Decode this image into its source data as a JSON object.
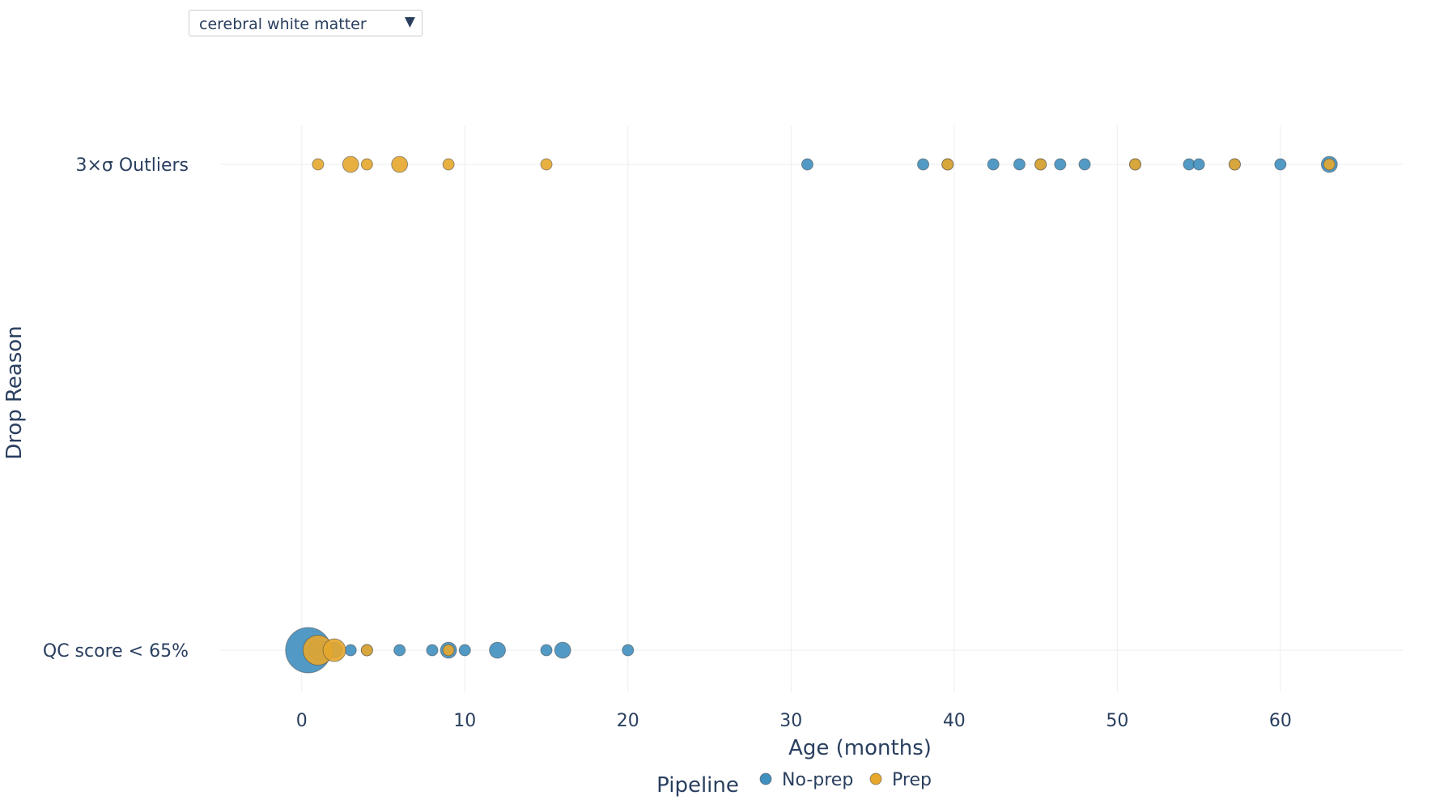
{
  "dropdown": {
    "selected": "cerebral white matter"
  },
  "colors": {
    "no_prep": "#3f8fbf",
    "prep": "#e6a72c",
    "grid": "#ebedf0",
    "text": "#2a3f5f"
  },
  "chart_data": {
    "type": "scatter",
    "title": "",
    "xlabel": "Age (months)",
    "ylabel": "Drop Reason",
    "xlim": [
      -5,
      67.5
    ],
    "xticks": [
      0,
      10,
      20,
      30,
      40,
      50,
      60
    ],
    "categories": [
      "3×σ Outliers",
      "QC score < 65%"
    ],
    "grid": true,
    "legend": {
      "title": "Pipeline",
      "placement": "bottom-center"
    },
    "series": [
      {
        "name": "No-prep",
        "color": "#3f8fbf",
        "points": [
          {
            "x": 31,
            "y": "3×σ Outliers",
            "count": 1
          },
          {
            "x": 38.1,
            "y": "3×σ Outliers",
            "count": 1
          },
          {
            "x": 39.6,
            "y": "3×σ Outliers",
            "count": 1
          },
          {
            "x": 42.4,
            "y": "3×σ Outliers",
            "count": 1
          },
          {
            "x": 44,
            "y": "3×σ Outliers",
            "count": 1
          },
          {
            "x": 45.3,
            "y": "3×σ Outliers",
            "count": 1
          },
          {
            "x": 46.5,
            "y": "3×σ Outliers",
            "count": 1
          },
          {
            "x": 48,
            "y": "3×σ Outliers",
            "count": 1
          },
          {
            "x": 51.1,
            "y": "3×σ Outliers",
            "count": 1
          },
          {
            "x": 54.4,
            "y": "3×σ Outliers",
            "count": 1
          },
          {
            "x": 55,
            "y": "3×σ Outliers",
            "count": 1
          },
          {
            "x": 57.2,
            "y": "3×σ Outliers",
            "count": 1
          },
          {
            "x": 60,
            "y": "3×σ Outliers",
            "count": 1
          },
          {
            "x": 63,
            "y": "3×σ Outliers",
            "count": 2
          },
          {
            "x": 0.4,
            "y": "QC score < 65%",
            "count": 16
          },
          {
            "x": 1,
            "y": "QC score < 65%",
            "count": 3
          },
          {
            "x": 2,
            "y": "QC score < 65%",
            "count": 2
          },
          {
            "x": 3,
            "y": "QC score < 65%",
            "count": 1
          },
          {
            "x": 4,
            "y": "QC score < 65%",
            "count": 1
          },
          {
            "x": 6,
            "y": "QC score < 65%",
            "count": 1
          },
          {
            "x": 8,
            "y": "QC score < 65%",
            "count": 1
          },
          {
            "x": 9,
            "y": "QC score < 65%",
            "count": 2
          },
          {
            "x": 10,
            "y": "QC score < 65%",
            "count": 1
          },
          {
            "x": 12,
            "y": "QC score < 65%",
            "count": 2
          },
          {
            "x": 15,
            "y": "QC score < 65%",
            "count": 1
          },
          {
            "x": 16,
            "y": "QC score < 65%",
            "count": 2
          },
          {
            "x": 20,
            "y": "QC score < 65%",
            "count": 1
          }
        ]
      },
      {
        "name": "Prep",
        "color": "#e6a72c",
        "points": [
          {
            "x": 1,
            "y": "3×σ Outliers",
            "count": 1
          },
          {
            "x": 3,
            "y": "3×σ Outliers",
            "count": 2
          },
          {
            "x": 4,
            "y": "3×σ Outliers",
            "count": 1
          },
          {
            "x": 6,
            "y": "3×σ Outliers",
            "count": 2
          },
          {
            "x": 9,
            "y": "3×σ Outliers",
            "count": 1
          },
          {
            "x": 15,
            "y": "3×σ Outliers",
            "count": 1
          },
          {
            "x": 39.6,
            "y": "3×σ Outliers",
            "count": 1
          },
          {
            "x": 45.3,
            "y": "3×σ Outliers",
            "count": 1
          },
          {
            "x": 51.1,
            "y": "3×σ Outliers",
            "count": 1
          },
          {
            "x": 57.2,
            "y": "3×σ Outliers",
            "count": 1
          },
          {
            "x": 63,
            "y": "3×σ Outliers",
            "count": 1
          },
          {
            "x": 1,
            "y": "QC score < 65%",
            "count": 7
          },
          {
            "x": 2,
            "y": "QC score < 65%",
            "count": 4
          },
          {
            "x": 4,
            "y": "QC score < 65%",
            "count": 1
          },
          {
            "x": 9,
            "y": "QC score < 65%",
            "count": 1
          }
        ]
      }
    ]
  }
}
